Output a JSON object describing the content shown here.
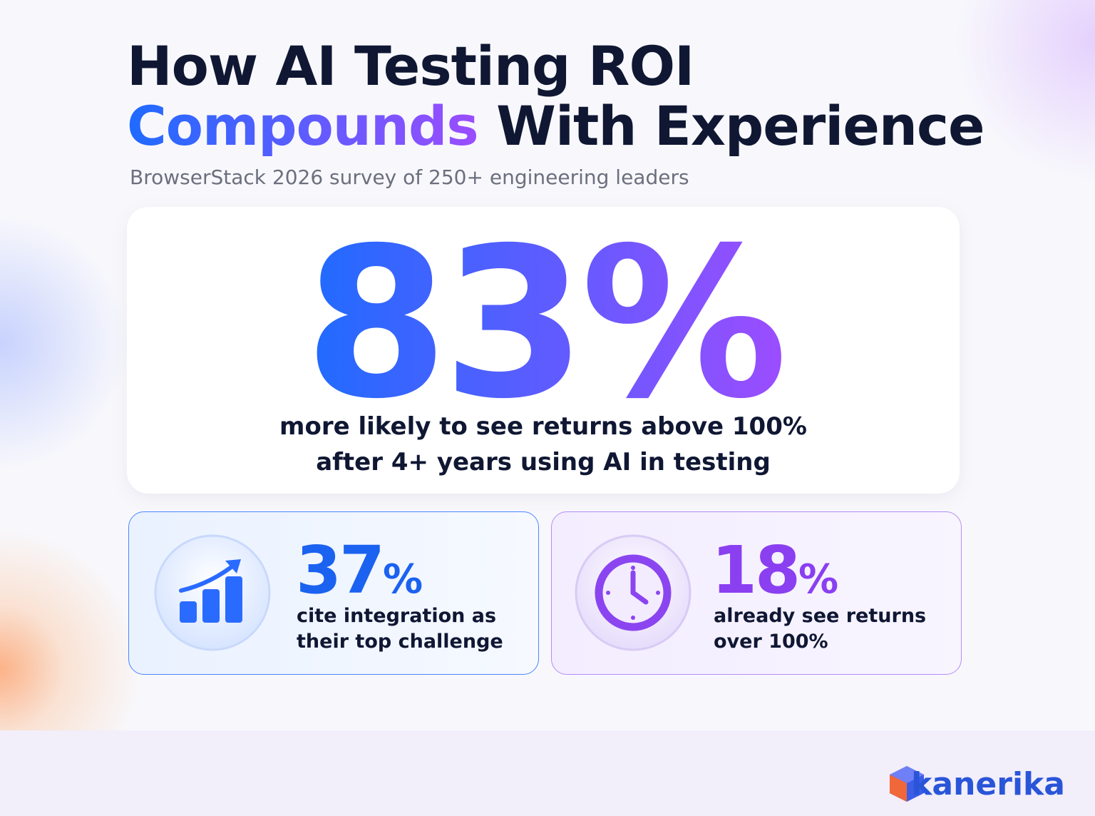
{
  "header": {
    "title_line1": "How AI Testing ROI",
    "title_line2_highlight": "Compounds",
    "title_line2_rest": "With Experience",
    "subtitle": "BrowserStack 2026 survey of 250+ engineering leaders"
  },
  "hero": {
    "stat": "83%",
    "description_lines": [
      "more likely to see returns above 100%",
      "after 4+ years using AI in testing"
    ]
  },
  "cards": [
    {
      "value": "37",
      "unit": "%",
      "description_lines": [
        "cite integration as",
        "their top challenge"
      ]
    },
    {
      "value": "18",
      "unit": "%",
      "description_lines": [
        "already see returns",
        "over 100%"
      ]
    }
  ],
  "footer": {
    "brand": "kanerika"
  }
}
